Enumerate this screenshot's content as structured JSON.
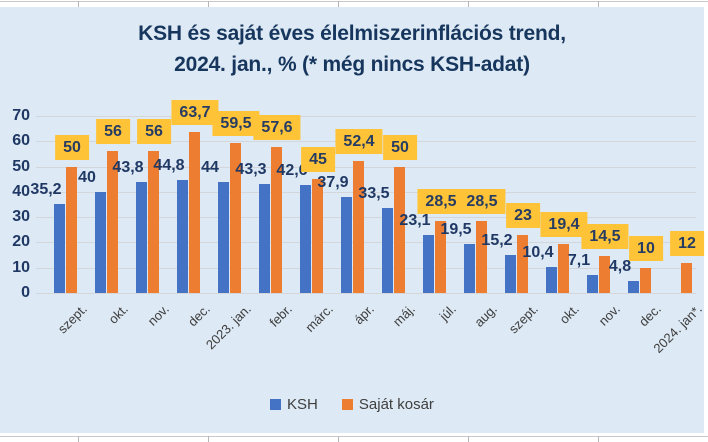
{
  "title": {
    "line1": "KSH és saját éves élelmiszerinflációs trend,",
    "line2": "2024. jan., % (* még nincs KSH-adat)"
  },
  "legend": {
    "items": [
      {
        "label": "KSH",
        "color": "#4472c4"
      },
      {
        "label": "Saját kosár",
        "color": "#ed7d31"
      }
    ]
  },
  "colors": {
    "chart_background": "#dde9f4",
    "ksh_bar": "#4472c4",
    "sajat_kosar_bar": "#ed7d31",
    "value_label_box": "#ffc338",
    "navy_text": "#17365d",
    "axis_text": "#3c3c3c",
    "gridline": "#d4d6da"
  },
  "chart_data": {
    "type": "bar",
    "title": "KSH és saját éves élelmiszerinflációs trend, 2024. jan., % (* még nincs KSH-adat)",
    "categories": [
      "szept.",
      "okt.",
      "nov.",
      "dec.",
      "2023. jan.",
      "febr.",
      "márc.",
      "ápr.",
      "máj.",
      "júl.",
      "aug.",
      "szept.",
      "okt.",
      "nov.",
      "dec.",
      "2024. jan*."
    ],
    "series": [
      {
        "name": "KSH",
        "color": "#4472c4",
        "label_style": "plain",
        "values": [
          35.2,
          40,
          43.8,
          44.8,
          44,
          43.3,
          42.6,
          37.9,
          33.5,
          23.1,
          19.5,
          15.2,
          10.4,
          7.1,
          4.8,
          null
        ],
        "labels": [
          "35,2",
          "40",
          "43,8",
          "44,8",
          "44",
          "43,3",
          "42,6",
          "37,9",
          "33,5",
          "23,1",
          "19,5",
          "15,2",
          "10,4",
          "7,1",
          "4,8",
          null
        ]
      },
      {
        "name": "Saját kosár",
        "color": "#ed7d31",
        "label_style": "gold-box",
        "values": [
          50,
          56,
          56,
          63.7,
          59.5,
          57.6,
          45,
          52.4,
          50,
          28.5,
          28.5,
          23,
          19.4,
          14.5,
          10,
          12
        ],
        "labels": [
          "50",
          "56",
          "56",
          "63,7",
          "59,5",
          "57,6",
          "45",
          "52,4",
          "50",
          "28,5",
          "28,5",
          "23",
          "19,4",
          "14,5",
          "10",
          "12"
        ]
      }
    ],
    "ylim": [
      0,
      70
    ],
    "yticks": [
      0,
      10,
      20,
      30,
      40,
      50,
      60,
      70
    ],
    "grid": "horizontal",
    "legend_position": "bottom"
  }
}
